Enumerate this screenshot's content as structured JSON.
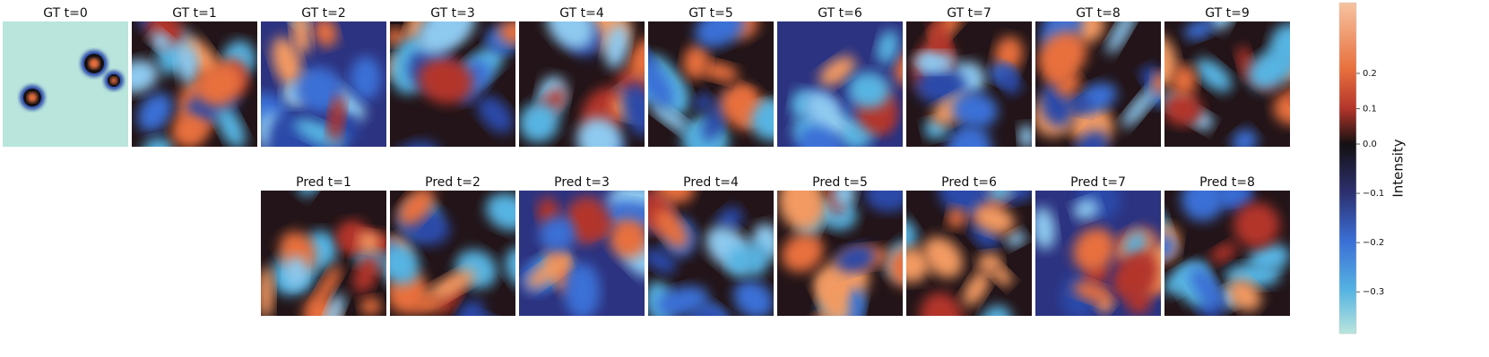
{
  "figure": {
    "gt_titles": [
      "GT t=0",
      "GT t=1",
      "GT t=2",
      "GT t=3",
      "GT t=4",
      "GT t=5",
      "GT t=6",
      "GT t=7",
      "GT t=8",
      "GT t=9"
    ],
    "pred_titles": [
      "Pred t=1",
      "Pred t=2",
      "Pred t=3",
      "Pred t=4",
      "Pred t=5",
      "Pred t=6",
      "Pred t=7",
      "Pred t=8"
    ],
    "colorbar": {
      "label": "Intensity",
      "ylim": [
        -0.385,
        0.4
      ],
      "center": 0,
      "yticks": [
        0.2,
        0.1,
        {
          "value": 0,
          "label": "0.0"
        },
        {
          "value": -0.1,
          "label": "−0.1"
        },
        {
          "value": -0.2,
          "label": "−0.2"
        },
        {
          "value": -0.3,
          "label": "−0.3"
        }
      ]
    }
  }
}
